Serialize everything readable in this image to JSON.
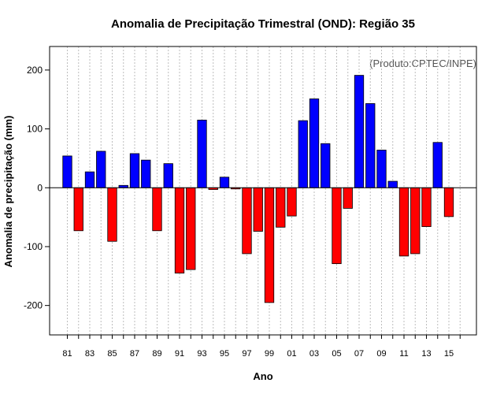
{
  "chart_data": {
    "type": "bar",
    "title": "Anomalia de Precipitação Trimestral (OND): Região 35",
    "xlabel": "Ano",
    "ylabel": "Anomalia de precipitação (mm)",
    "credit": "(Produto:CPTEC/INPE)",
    "ylim": [
      -250,
      240
    ],
    "yticks": [
      -200,
      -100,
      0,
      100,
      200
    ],
    "grid": "vertical dotted",
    "positive_color": "#0000ff",
    "negative_color": "#ff0000",
    "categories": [
      "81",
      "82",
      "83",
      "84",
      "85",
      "86",
      "87",
      "88",
      "89",
      "90",
      "91",
      "92",
      "93",
      "94",
      "95",
      "96",
      "97",
      "98",
      "99",
      "00",
      "01",
      "02",
      "03",
      "04",
      "05",
      "06",
      "07",
      "08",
      "09",
      "10",
      "11",
      "12",
      "13",
      "14",
      "15"
    ],
    "x_tick_labels": [
      "81",
      "83",
      "85",
      "87",
      "89",
      "91",
      "93",
      "95",
      "97",
      "99",
      "01",
      "03",
      "05",
      "07",
      "09",
      "11",
      "13",
      "15"
    ],
    "values": [
      54,
      -73,
      27,
      62,
      -91,
      4,
      58,
      47,
      -73,
      41,
      -145,
      -139,
      115,
      -3,
      18,
      -2,
      -112,
      -74,
      -195,
      -67,
      -48,
      114,
      151,
      75,
      -129,
      -35,
      191,
      143,
      64,
      11,
      -116,
      -112,
      -66,
      77,
      -49
    ]
  }
}
